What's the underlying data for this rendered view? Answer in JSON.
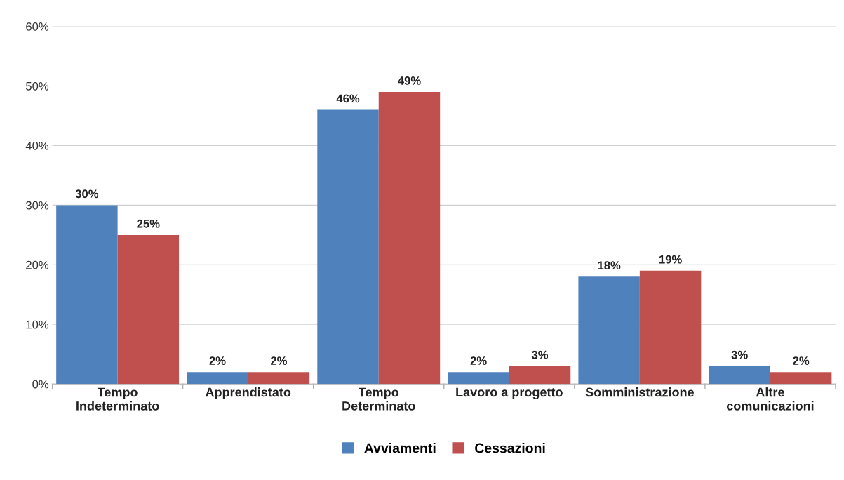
{
  "chart_data": {
    "type": "bar",
    "categories": [
      "Tempo\nIndeterminato",
      "Apprendistato",
      "Tempo\nDeterminato",
      "Lavoro a progetto",
      "Somministrazione",
      "Altre\ncomunicazioni"
    ],
    "series": [
      {
        "name": "Avviamenti",
        "color": "#4f81bd",
        "values": [
          30,
          2,
          46,
          2,
          18,
          3
        ],
        "value_labels": [
          "30%",
          "2%",
          "46%",
          "2%",
          "18%",
          "3%"
        ]
      },
      {
        "name": "Cessazioni",
        "color": "#c0504d",
        "values": [
          25,
          2,
          49,
          3,
          19,
          2
        ],
        "value_labels": [
          "25%",
          "2%",
          "49%",
          "3%",
          "19%",
          "2%"
        ]
      }
    ],
    "ylim": [
      0,
      60
    ],
    "yticks": [
      {
        "value": 0,
        "label": "0%"
      },
      {
        "value": 10,
        "label": "10%"
      },
      {
        "value": 20,
        "label": "20%"
      },
      {
        "value": 30,
        "label": "30%"
      },
      {
        "value": 40,
        "label": "40%"
      },
      {
        "value": 50,
        "label": "50%"
      },
      {
        "value": 60,
        "label": "60%"
      }
    ],
    "grid": "y",
    "legend": "bottom"
  }
}
